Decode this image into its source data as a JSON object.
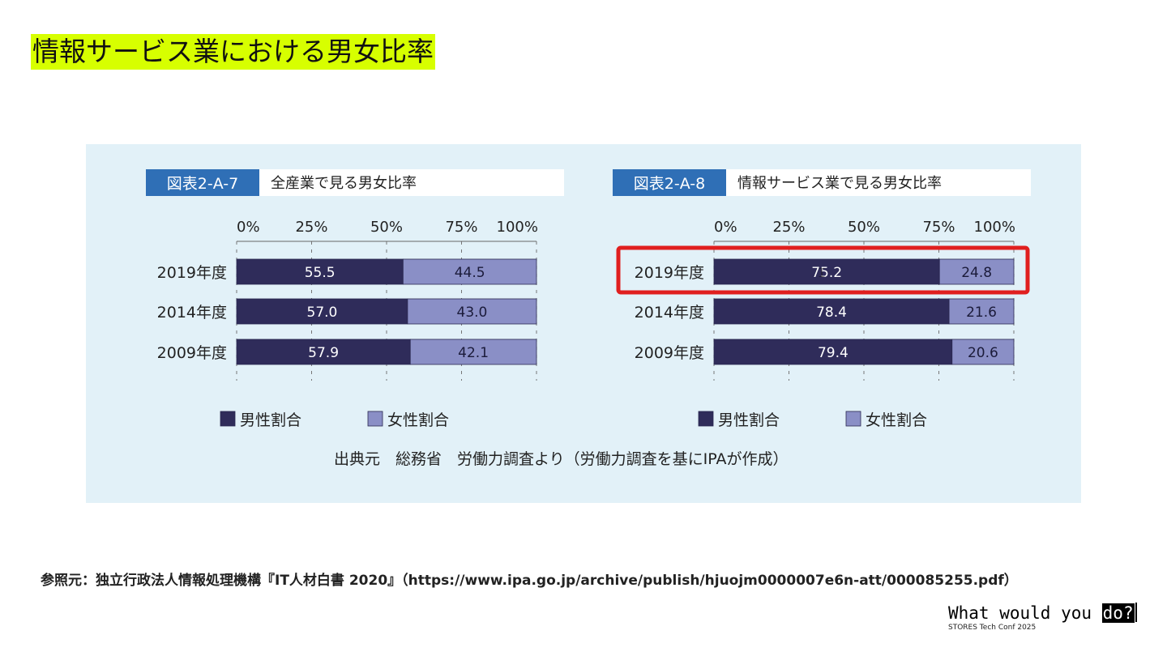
{
  "slide": {
    "title": "情報サービス業における男女比率",
    "reference": "参照元：独立行政法人情報処理機構『IT人材白書 2020』（https://www.ipa.go.jp/archive/publish/hjuojm0000007e6n-att/000085255.pdf）",
    "brand": {
      "tagline_prefix": "What would you ",
      "tagline_highlight": "do?",
      "event": "STORES Tech Conf 2025"
    }
  },
  "source_note": "出典元　総務省　労働力調査より（労働力調査を基にIPAが作成）",
  "colors": {
    "male": "#2f2c5a",
    "female": "#8a8fc6",
    "figure_tag": "#2f6fb6",
    "highlight_box": "#e01f1f",
    "panel_bg": "#e2f1f8",
    "title_highlight": "#d7ff00"
  },
  "chart_data": [
    {
      "type": "bar",
      "orientation": "horizontal",
      "stacked": true,
      "figure_label": "図表2-A-7",
      "title": "全産業で見る男女比率",
      "xticks": [
        "0%",
        "25%",
        "50%",
        "75%",
        "100%"
      ],
      "xlim": [
        0,
        100
      ],
      "categories": [
        "2019年度",
        "2014年度",
        "2009年度"
      ],
      "series": [
        {
          "name": "男性割合",
          "values": [
            55.5,
            57.0,
            57.9
          ],
          "labels": [
            "55.5",
            "57.0",
            "57.9"
          ]
        },
        {
          "name": "女性割合",
          "values": [
            44.5,
            43.0,
            42.1
          ],
          "labels": [
            "44.5",
            "43.0",
            "42.1"
          ]
        }
      ],
      "legend": "bottom",
      "highlighted_category": null
    },
    {
      "type": "bar",
      "orientation": "horizontal",
      "stacked": true,
      "figure_label": "図表2-A-8",
      "title": "情報サービス業で見る男女比率",
      "xticks": [
        "0%",
        "25%",
        "50%",
        "75%",
        "100%"
      ],
      "xlim": [
        0,
        100
      ],
      "categories": [
        "2019年度",
        "2014年度",
        "2009年度"
      ],
      "series": [
        {
          "name": "男性割合",
          "values": [
            75.2,
            78.4,
            79.4
          ],
          "labels": [
            "75.2",
            "78.4",
            "79.4"
          ]
        },
        {
          "name": "女性割合",
          "values": [
            24.8,
            21.6,
            20.6
          ],
          "labels": [
            "24.8",
            "21.6",
            "20.6"
          ]
        }
      ],
      "legend": "bottom",
      "highlighted_category": "2019年度"
    }
  ]
}
